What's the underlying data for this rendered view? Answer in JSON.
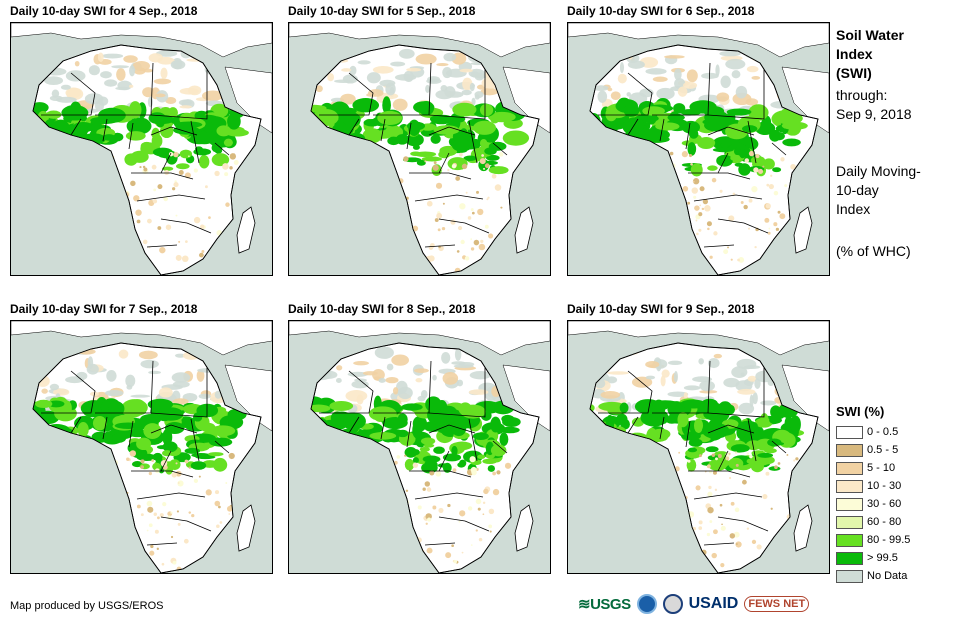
{
  "panels": [
    {
      "title": "Daily 10-day  SWI for 4  Sep., 2018"
    },
    {
      "title": "Daily 10-day  SWI for 5  Sep., 2018"
    },
    {
      "title": "Daily 10-day  SWI for 6  Sep., 2018"
    },
    {
      "title": "Daily 10-day  SWI for 7  Sep., 2018"
    },
    {
      "title": "Daily 10-day  SWI for 8  Sep., 2018"
    },
    {
      "title": "Daily 10-day  SWI for 9  Sep., 2018"
    }
  ],
  "info": {
    "title_line1": "Soil Water",
    "title_line2": "Index",
    "title_line3": "(SWI)",
    "through_label": "through:",
    "through_date": "Sep 9, 2018",
    "desc_line1": "Daily Moving-",
    "desc_line2": "10-day",
    "desc_line3": "Index",
    "units": "(% of WHC)"
  },
  "legend": {
    "title": "SWI (%)",
    "items": [
      {
        "label": "0 - 0.5",
        "color": "#ffffff"
      },
      {
        "label": "0.5 - 5",
        "color": "#d8b97e"
      },
      {
        "label": "5 - 10",
        "color": "#f1d2a3"
      },
      {
        "label": "10 - 30",
        "color": "#fbe8c8"
      },
      {
        "label": "30 - 60",
        "color": "#fcfcd7"
      },
      {
        "label": "60 - 80",
        "color": "#e2f7ac"
      },
      {
        "label": "80 - 99.5",
        "color": "#66e022"
      },
      {
        "label": "> 99.5",
        "color": "#0aba0a"
      },
      {
        "label": "No Data",
        "color": "#cfdcd6"
      }
    ]
  },
  "footer": {
    "credit": "Map produced by USGS/EROS"
  },
  "logos": {
    "usgs": "≋USGS",
    "usaid": "USAID",
    "fews": "FEWS NET"
  },
  "colors": {
    "ocean": "#cfdcd6",
    "land": "#ffffff",
    "nodata": "#cfdcd6",
    "border": "#000000"
  }
}
